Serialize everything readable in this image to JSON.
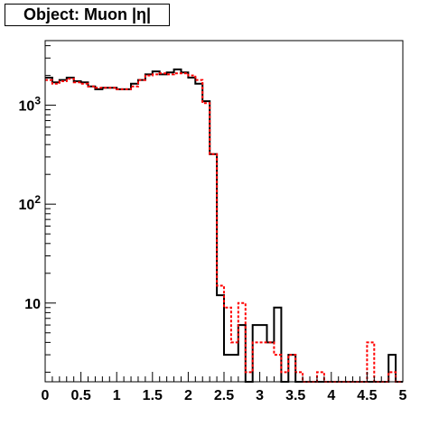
{
  "title": "Object: Muon |η|",
  "chart_data": {
    "type": "line",
    "title": "Object: Muon |η|",
    "xlabel": "",
    "ylabel": "",
    "y_scale": "log",
    "xlim": [
      0,
      5
    ],
    "ylim": [
      1.6,
      4500
    ],
    "grid": false,
    "x_ticks": [
      {
        "value": 0,
        "label": "0"
      },
      {
        "value": 0.5,
        "label": "0.5"
      },
      {
        "value": 1,
        "label": "1"
      },
      {
        "value": 1.5,
        "label": "1.5"
      },
      {
        "value": 2,
        "label": "2"
      },
      {
        "value": 2.5,
        "label": "2.5"
      },
      {
        "value": 3,
        "label": "3"
      },
      {
        "value": 3.5,
        "label": "3.5"
      },
      {
        "value": 4,
        "label": "4"
      },
      {
        "value": 4.5,
        "label": "4.5"
      },
      {
        "value": 5,
        "label": "5"
      }
    ],
    "y_ticks": [
      {
        "value": 10,
        "base": "10",
        "exp": ""
      },
      {
        "value": 100,
        "base": "10",
        "exp": "2"
      },
      {
        "value": 1000,
        "base": "10",
        "exp": "3"
      }
    ],
    "bin_edges_start": 0,
    "bin_width": 0.1,
    "series": [
      {
        "style": "solid",
        "color": "#000000",
        "values": [
          1900,
          1700,
          1800,
          1900,
          1750,
          1700,
          1550,
          1450,
          1500,
          1500,
          1450,
          1450,
          1650,
          1800,
          2050,
          2200,
          2050,
          2150,
          2300,
          2150,
          1900,
          1650,
          1100,
          320,
          12,
          3,
          3,
          6,
          0,
          6,
          6,
          4,
          9,
          0,
          3,
          0,
          0,
          0,
          0,
          0,
          0,
          0,
          0,
          0,
          0,
          0,
          0,
          0,
          3,
          0
        ]
      },
      {
        "style": "dashed",
        "color": "#ff0000",
        "values": [
          1800,
          1650,
          1750,
          1850,
          1700,
          1650,
          1550,
          1500,
          1500,
          1500,
          1450,
          1450,
          1550,
          1800,
          2000,
          2050,
          2100,
          2050,
          2100,
          2100,
          2000,
          1800,
          1050,
          320,
          15,
          9,
          4,
          10,
          2,
          4,
          4,
          4,
          3,
          2,
          3,
          2,
          0,
          0,
          2,
          0,
          0,
          0,
          0,
          0,
          0,
          4,
          0,
          0,
          2,
          0
        ]
      }
    ]
  }
}
